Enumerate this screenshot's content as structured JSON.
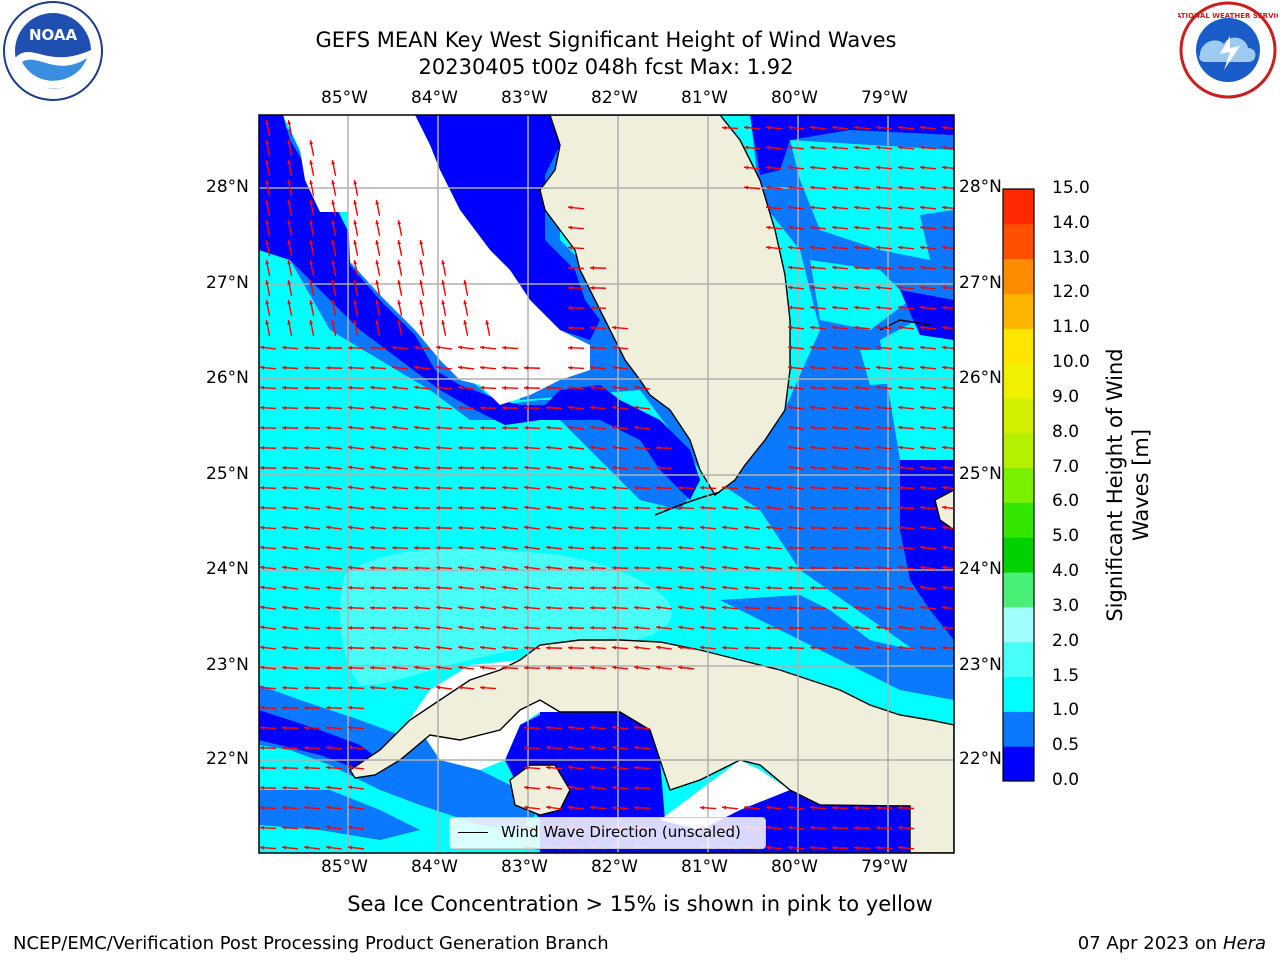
{
  "title": {
    "line1": "GEFS MEAN Key West Significant Height of Wind Waves",
    "line2": "20230405 t00z 048h fcst   Max: 1.92"
  },
  "map": {
    "lon_ticks": [
      "85°W",
      "84°W",
      "83°W",
      "82°W",
      "81°W",
      "80°W",
      "79°W"
    ],
    "lat_ticks": [
      "28°N",
      "27°N",
      "26°N",
      "25°N",
      "24°N",
      "23°N",
      "22°N"
    ],
    "legend_label": "Wind Wave Direction (unscaled)",
    "land_color": "#efefdb",
    "arrow_color": "#ff0000"
  },
  "colorbar": {
    "label_line1": "Significant Height of Wind",
    "label_line2": "Waves [m]",
    "ticks": [
      "0.0",
      "0.5",
      "1.0",
      "1.5",
      "2.0",
      "3.0",
      "4.0",
      "5.0",
      "6.0",
      "7.0",
      "8.0",
      "9.0",
      "10.0",
      "11.0",
      "12.0",
      "13.0",
      "14.0",
      "15.0"
    ],
    "colors": [
      "#0000ff",
      "#0a78ff",
      "#00ffff",
      "#48fff8",
      "#a0fffa",
      "#48f078",
      "#00d200",
      "#32e600",
      "#78f000",
      "#b4f000",
      "#d2f000",
      "#f0f000",
      "#ffe600",
      "#ffb400",
      "#ff8c00",
      "#ff5000",
      "#ff2800",
      "#ff0000"
    ]
  },
  "footer": {
    "note": "Sea Ice Concentration > 15% is shown in pink to yellow",
    "left": "NCEP/EMC/Verification Post Processing Product Generation Branch",
    "right_date": "07 Apr 2023 on ",
    "right_host": "Hera"
  },
  "logos": {
    "noaa_text": "NOAA",
    "nws_text": "NATIONAL WEATHER SERVICE"
  }
}
